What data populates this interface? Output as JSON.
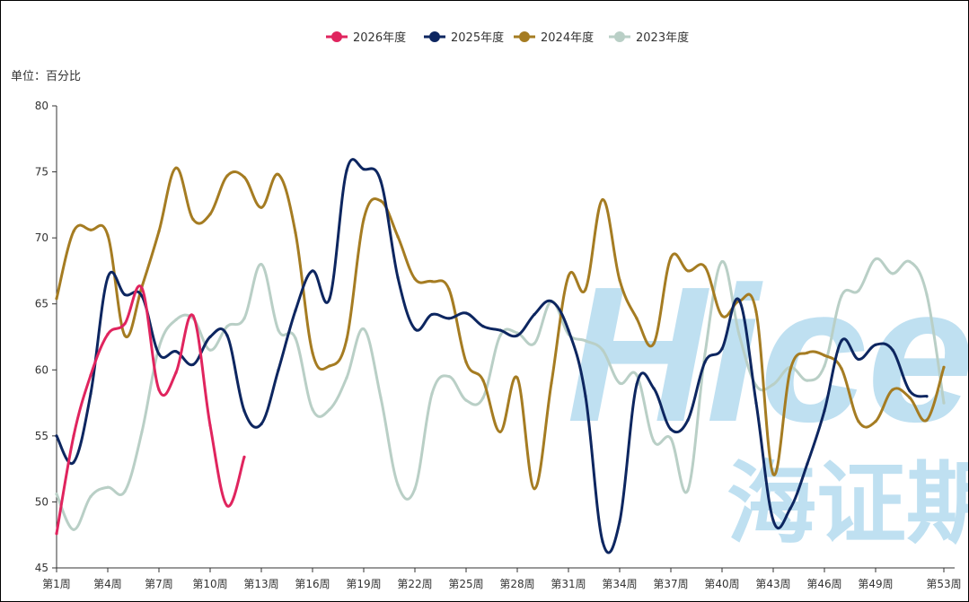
{
  "chart_data": {
    "type": "line",
    "unit_label": "单位：百分比",
    "ylim": [
      45,
      80
    ],
    "y_ticks": [
      "45",
      "50",
      "55",
      "60",
      "65",
      "70",
      "75",
      "80"
    ],
    "x_tick_labels": [
      "第1周",
      "第4周",
      "第7周",
      "第10周",
      "第13周",
      "第16周",
      "第19周",
      "第22周",
      "第25周",
      "第28周",
      "第31周",
      "第34周",
      "第37周",
      "第40周",
      "第43周",
      "第46周",
      "第49周",
      "第53周"
    ],
    "legend_position": "top-center",
    "series": [
      {
        "name": "2026年度",
        "color": "#e0245e",
        "values": [
          47.6,
          55.0,
          59.6,
          62.7,
          63.5,
          66.2,
          58.5,
          59.8,
          64.1,
          55.8,
          49.7,
          53.4
        ]
      },
      {
        "name": "2025年度",
        "color": "#0d2660",
        "values": [
          55.0,
          53.0,
          58.2,
          67.0,
          65.7,
          65.6,
          61.2,
          61.4,
          60.4,
          62.5,
          62.6,
          56.9,
          55.9,
          60.0,
          64.5,
          67.5,
          65.4,
          75.1,
          75.2,
          74.3,
          67.0,
          63.1,
          64.2,
          63.9,
          64.3,
          63.3,
          63.0,
          62.6,
          64.2,
          65.2,
          63.0,
          58.0,
          47.0,
          48.5,
          58.9,
          58.6,
          55.5,
          56.2,
          60.6,
          61.6,
          65.3,
          57.5,
          48.6,
          49.5,
          52.9,
          56.9,
          62.2,
          60.8,
          61.9,
          61.5,
          58.4,
          58.0
        ]
      },
      {
        "name": "2024年度",
        "color": "#a57c22",
        "values": [
          65.4,
          70.5,
          70.6,
          70.2,
          62.6,
          66.3,
          70.5,
          75.3,
          71.4,
          71.8,
          74.7,
          74.6,
          72.3,
          74.8,
          70.4,
          61.3,
          60.3,
          62.3,
          71.4,
          72.8,
          70.1,
          66.9,
          66.7,
          66.1,
          60.6,
          59.2,
          55.3,
          59.4,
          51.0,
          59.0,
          67.1,
          66.1,
          72.9,
          66.8,
          63.9,
          62.0,
          68.5,
          67.5,
          67.8,
          64.1,
          65.2,
          64.4,
          52.1,
          60.0,
          61.3,
          61.1,
          60.1,
          56.1,
          56.1,
          58.5,
          57.9,
          56.2,
          60.2
        ]
      },
      {
        "name": "2023年度",
        "color": "#b9cfc6",
        "values": [
          50.6,
          47.9,
          50.4,
          51.1,
          50.8,
          55.3,
          61.7,
          63.8,
          63.9,
          61.5,
          63.3,
          63.9,
          68.0,
          63.0,
          62.4,
          57.0,
          57.0,
          59.4,
          63.1,
          57.9,
          51.3,
          51.0,
          58.2,
          59.5,
          57.7,
          57.9,
          62.6,
          62.8,
          62.0,
          65.2,
          62.7,
          62.2,
          61.5,
          59.0,
          59.6,
          54.6,
          54.8,
          50.9,
          61.2,
          68.2,
          62.7,
          58.8,
          58.9,
          60.2,
          59.2,
          60.3,
          65.6,
          66.0,
          68.4,
          67.3,
          68.2,
          65.7,
          57.5
        ]
      }
    ]
  },
  "watermark": {
    "latin_text": "Hicen",
    "cjk_text": "海证期"
  }
}
